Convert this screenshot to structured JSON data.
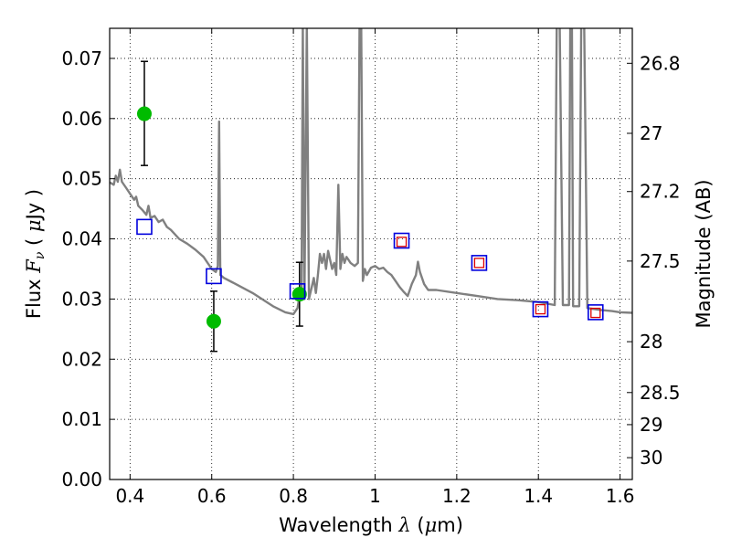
{
  "chart_data": {
    "type": "scatter",
    "xlabel": {
      "prefix": "Wavelength",
      "symbol": "λ",
      "unit_open": "(",
      "unit_mu": "μ",
      "unit_rest": "m)"
    },
    "ylabel": {
      "prefix": "Flux",
      "symbol": "F",
      "subscript": "ν",
      "unit_open": "(",
      "unit_mu": "μ",
      "unit_rest": "Jy )"
    },
    "y2label": "Magnitude (AB)",
    "xlim": [
      0.35,
      1.63
    ],
    "ylim": [
      0.0,
      0.075
    ],
    "grid": true,
    "x_ticks": [
      {
        "v": 0.4,
        "label": "0.4"
      },
      {
        "v": 0.6,
        "label": "0.6"
      },
      {
        "v": 0.8,
        "label": "0.8"
      },
      {
        "v": 1.0,
        "label": "1"
      },
      {
        "v": 1.2,
        "label": "1.2"
      },
      {
        "v": 1.4,
        "label": "1.4"
      },
      {
        "v": 1.6,
        "label": "1.6"
      }
    ],
    "y_ticks": [
      {
        "v": 0.0,
        "label": "0.00"
      },
      {
        "v": 0.01,
        "label": "0.01"
      },
      {
        "v": 0.02,
        "label": "0.02"
      },
      {
        "v": 0.03,
        "label": "0.03"
      },
      {
        "v": 0.04,
        "label": "0.04"
      },
      {
        "v": 0.05,
        "label": "0.05"
      },
      {
        "v": 0.06,
        "label": "0.06"
      },
      {
        "v": 0.07,
        "label": "0.07"
      }
    ],
    "mag_ticks": [
      {
        "v": 26.8,
        "label": "26.8"
      },
      {
        "v": 27.0,
        "label": "27"
      },
      {
        "v": 27.2,
        "label": "27.2"
      },
      {
        "v": 27.5,
        "label": "27.5"
      },
      {
        "v": 28.0,
        "label": "28"
      },
      {
        "v": 28.5,
        "label": "28.5"
      },
      {
        "v": 29.0,
        "label": "29"
      },
      {
        "v": 30.0,
        "label": "30"
      }
    ],
    "series": [
      {
        "kind": "line",
        "color": "#808080",
        "points": [
          [
            0.35,
            0.0494
          ],
          [
            0.36,
            0.049
          ],
          [
            0.365,
            0.0505
          ],
          [
            0.37,
            0.0495
          ],
          [
            0.375,
            0.0515
          ],
          [
            0.38,
            0.0495
          ],
          [
            0.39,
            0.0485
          ],
          [
            0.4,
            0.0475
          ],
          [
            0.41,
            0.0465
          ],
          [
            0.415,
            0.047
          ],
          [
            0.42,
            0.0455
          ],
          [
            0.43,
            0.0448
          ],
          [
            0.44,
            0.044
          ],
          [
            0.445,
            0.0455
          ],
          [
            0.45,
            0.0435
          ],
          [
            0.46,
            0.0438
          ],
          [
            0.47,
            0.0428
          ],
          [
            0.48,
            0.0432
          ],
          [
            0.49,
            0.042
          ],
          [
            0.5,
            0.0415
          ],
          [
            0.52,
            0.04
          ],
          [
            0.54,
            0.0392
          ],
          [
            0.56,
            0.0382
          ],
          [
            0.58,
            0.037
          ],
          [
            0.6,
            0.035
          ],
          [
            0.61,
            0.0345
          ],
          [
            0.615,
            0.0355
          ],
          [
            0.618,
            0.0595
          ],
          [
            0.621,
            0.034
          ],
          [
            0.63,
            0.0335
          ],
          [
            0.65,
            0.0328
          ],
          [
            0.7,
            0.031
          ],
          [
            0.75,
            0.0288
          ],
          [
            0.78,
            0.0278
          ],
          [
            0.8,
            0.0275
          ],
          [
            0.81,
            0.0285
          ],
          [
            0.815,
            0.0305
          ],
          [
            0.82,
            0.03
          ],
          [
            0.823,
            0.076
          ],
          [
            0.827,
            0.03
          ],
          [
            0.833,
            0.076
          ],
          [
            0.838,
            0.03
          ],
          [
            0.845,
            0.032
          ],
          [
            0.85,
            0.0335
          ],
          [
            0.855,
            0.031
          ],
          [
            0.86,
            0.034
          ],
          [
            0.865,
            0.0375
          ],
          [
            0.87,
            0.036
          ],
          [
            0.875,
            0.0375
          ],
          [
            0.88,
            0.035
          ],
          [
            0.885,
            0.038
          ],
          [
            0.89,
            0.0365
          ],
          [
            0.895,
            0.035
          ],
          [
            0.9,
            0.036
          ],
          [
            0.905,
            0.034
          ],
          [
            0.91,
            0.049
          ],
          [
            0.915,
            0.035
          ],
          [
            0.92,
            0.0375
          ],
          [
            0.925,
            0.036
          ],
          [
            0.93,
            0.037
          ],
          [
            0.94,
            0.036
          ],
          [
            0.95,
            0.0355
          ],
          [
            0.958,
            0.036
          ],
          [
            0.962,
            0.076
          ],
          [
            0.966,
            0.076
          ],
          [
            0.97,
            0.033
          ],
          [
            0.975,
            0.035
          ],
          [
            0.98,
            0.034
          ],
          [
            0.99,
            0.0352
          ],
          [
            1.0,
            0.0355
          ],
          [
            1.01,
            0.035
          ],
          [
            1.02,
            0.0352
          ],
          [
            1.03,
            0.0345
          ],
          [
            1.04,
            0.034
          ],
          [
            1.05,
            0.033
          ],
          [
            1.06,
            0.032
          ],
          [
            1.07,
            0.0312
          ],
          [
            1.08,
            0.0305
          ],
          [
            1.09,
            0.0325
          ],
          [
            1.1,
            0.034
          ],
          [
            1.105,
            0.0362
          ],
          [
            1.11,
            0.0345
          ],
          [
            1.12,
            0.0325
          ],
          [
            1.13,
            0.0315
          ],
          [
            1.15,
            0.0315
          ],
          [
            1.2,
            0.031
          ],
          [
            1.25,
            0.0305
          ],
          [
            1.3,
            0.03
          ],
          [
            1.35,
            0.0298
          ],
          [
            1.4,
            0.0295
          ],
          [
            1.44,
            0.029
          ],
          [
            1.445,
            0.076
          ],
          [
            1.452,
            0.076
          ],
          [
            1.46,
            0.029
          ],
          [
            1.475,
            0.029
          ],
          [
            1.478,
            0.076
          ],
          [
            1.482,
            0.076
          ],
          [
            1.485,
            0.0288
          ],
          [
            1.5,
            0.0288
          ],
          [
            1.505,
            0.076
          ],
          [
            1.512,
            0.076
          ],
          [
            1.52,
            0.0285
          ],
          [
            1.55,
            0.0282
          ],
          [
            1.58,
            0.028
          ],
          [
            1.6,
            0.0278
          ],
          [
            1.63,
            0.0277
          ]
        ]
      },
      {
        "kind": "points",
        "marker": "circle",
        "color": "#00bb00",
        "points": [
          [
            0.435,
            0.0608
          ],
          [
            0.605,
            0.0263
          ],
          [
            0.815,
            0.0308
          ]
        ],
        "errors": [
          [
            0.0522,
            0.0695
          ],
          [
            0.0213,
            0.0313
          ],
          [
            0.0255,
            0.0361
          ]
        ]
      },
      {
        "kind": "points",
        "marker": "square",
        "color": "#0000dd",
        "points": [
          [
            0.435,
            0.042
          ],
          [
            0.605,
            0.0338
          ],
          [
            0.81,
            0.0313
          ],
          [
            1.065,
            0.0397
          ],
          [
            1.255,
            0.036
          ],
          [
            1.405,
            0.0283
          ],
          [
            1.54,
            0.0278
          ]
        ]
      },
      {
        "kind": "points",
        "marker": "small-square",
        "color": "#dd0000",
        "points": [
          [
            1.065,
            0.0395
          ],
          [
            1.255,
            0.036
          ],
          [
            1.405,
            0.0283
          ],
          [
            1.54,
            0.0277
          ]
        ]
      }
    ]
  }
}
